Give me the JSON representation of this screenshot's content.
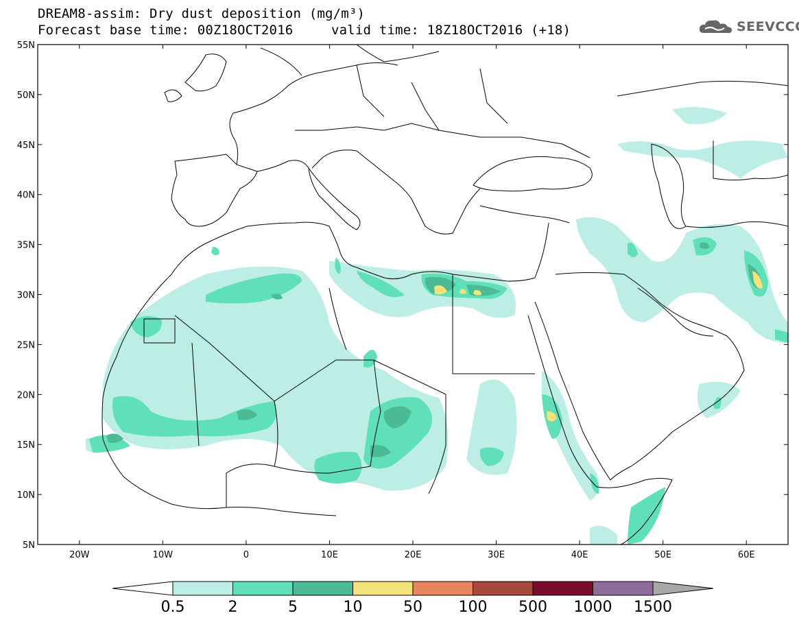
{
  "header": {
    "line1": "DREAM8-assim: Dry dust deposition (mg/m³)",
    "line2_left": "Forecast base time: 00Z18OCT2016",
    "line2_right": "valid time: 18Z18OCT2016 (+18)"
  },
  "logo": {
    "text": "SEEVCCC",
    "icon": "cloud-icon"
  },
  "axes": {
    "x_ticks": [
      "20W",
      "10W",
      "0",
      "10E",
      "20E",
      "30E",
      "40E",
      "50E",
      "60E"
    ],
    "x_values": [
      -20,
      -10,
      0,
      10,
      20,
      30,
      40,
      50,
      60
    ],
    "y_ticks": [
      "55N",
      "50N",
      "45N",
      "40N",
      "35N",
      "30N",
      "25N",
      "20N",
      "15N",
      "10N",
      "5N"
    ],
    "y_values": [
      55,
      50,
      45,
      40,
      35,
      30,
      25,
      20,
      15,
      10,
      5
    ],
    "lon_range": [
      -25,
      65
    ],
    "lat_range": [
      5,
      55
    ]
  },
  "legend": {
    "labels": [
      "0.5",
      "2",
      "5",
      "10",
      "50",
      "100",
      "500",
      "1000",
      "1500"
    ],
    "colors": [
      "#bdeee6",
      "#5fe0b8",
      "#4cba92",
      "#f4e27a",
      "#e8875e",
      "#a8473b",
      "#7c0a2a",
      "#8e6b9b",
      "#a8a8a8"
    ],
    "under_color": "#ffffff"
  }
}
